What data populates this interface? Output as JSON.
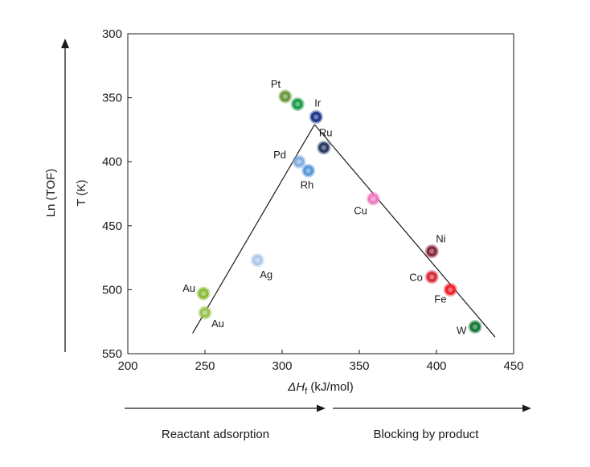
{
  "chart_data": {
    "type": "scatter",
    "xlabel_prefix": "ΔH",
    "xlabel_sub": "f",
    "xlabel_suffix": " (kJ/mol)",
    "ylabel": "T (K)",
    "outer_ylabel": "Ln (TOF)",
    "xlim": [
      200,
      450
    ],
    "ylim": [
      300,
      550
    ],
    "y_inverted": true,
    "x_ticks": [
      200,
      250,
      300,
      350,
      400,
      450
    ],
    "y_ticks": [
      300,
      350,
      400,
      450,
      500,
      550
    ],
    "grid": false,
    "points": [
      {
        "label": "Pt",
        "x": 302,
        "y": 349,
        "color": "#6a9a3c"
      },
      {
        "label": "",
        "x": 310,
        "y": 355,
        "color": "#1e9e4a"
      },
      {
        "label": "Ir",
        "x": 322,
        "y": 365,
        "color": "#1f3b8c"
      },
      {
        "label": "Ru",
        "x": 327,
        "y": 389,
        "color": "#2b3e66"
      },
      {
        "label": "Pd",
        "x": 311,
        "y": 400,
        "color": "#86aee0"
      },
      {
        "label": "Rh",
        "x": 317,
        "y": 407,
        "color": "#5a98d8"
      },
      {
        "label": "Cu",
        "x": 359,
        "y": 429,
        "color": "#f07cc0"
      },
      {
        "label": "Ag",
        "x": 284,
        "y": 477,
        "color": "#b0c8ea"
      },
      {
        "label": "Ni",
        "x": 397,
        "y": 470,
        "color": "#8a2a3e"
      },
      {
        "label": "Co",
        "x": 397,
        "y": 490,
        "color": "#d8303c"
      },
      {
        "label": "Fe",
        "x": 409,
        "y": 500,
        "color": "#ee2530"
      },
      {
        "label": "W",
        "x": 425,
        "y": 529,
        "color": "#1a7a3a"
      },
      {
        "label": "Au",
        "x": 249,
        "y": 503,
        "color": "#8cbc3c"
      },
      {
        "label": "Au",
        "x": 250,
        "y": 518,
        "color": "#9cc454"
      }
    ],
    "trend_lines": [
      {
        "x": [
          242,
          321
        ],
        "y": [
          534,
          371
        ]
      },
      {
        "x": [
          321,
          438
        ],
        "y": [
          371,
          537
        ]
      }
    ]
  },
  "footer": {
    "left_label": "Reactant adsorption",
    "right_label": "Blocking by product"
  }
}
